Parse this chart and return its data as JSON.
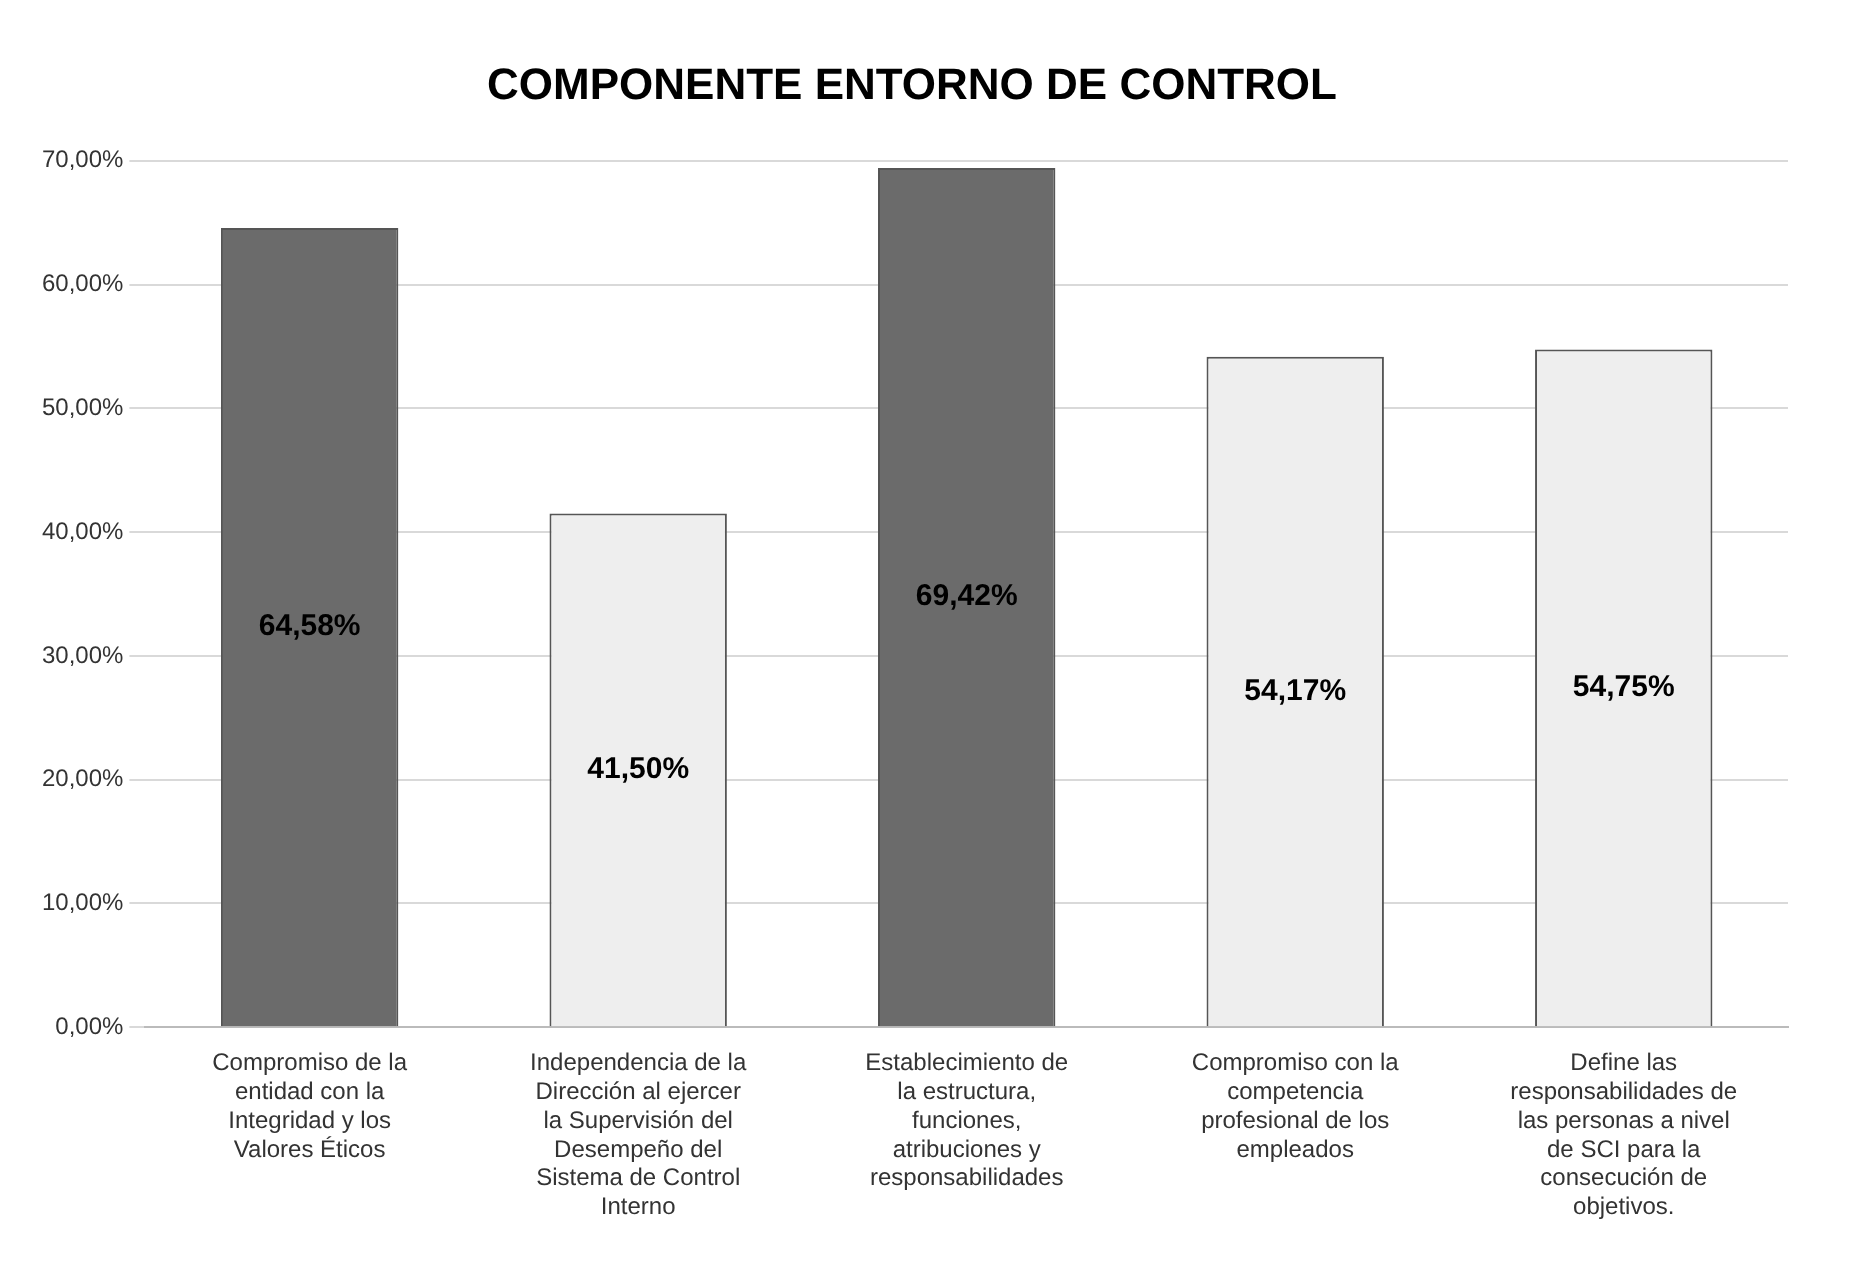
{
  "chart_data": {
    "type": "bar",
    "title": "COMPONENTE ENTORNO DE CONTROL",
    "categories": [
      "Compromiso de la entidad con la Integridad y los Valores Éticos",
      "Independencia de la Dirección al ejercer la Supervisión del Desempeño del Sistema de Control Interno",
      "Establecimiento de la estructura, funciones, atribuciones y responsabilidades",
      "Compromiso con la competencia profesional de los empleados",
      "Define las responsabilidades de las personas a nivel de SCI para la consecución de objetivos."
    ],
    "values": [
      64.58,
      41.5,
      69.42,
      54.17,
      54.75
    ],
    "colors": [
      "#6b6b6b",
      "#eeeeee",
      "#6b6b6b",
      "#eeeeee",
      "#eeeeee"
    ],
    "ylim": [
      0,
      70
    ],
    "yticks": [
      {
        "value": 0,
        "label": "0,00%"
      },
      {
        "value": 10,
        "label": "10,00%"
      },
      {
        "value": 20,
        "label": "20,00%"
      },
      {
        "value": 30,
        "label": "30,00%"
      },
      {
        "value": 40,
        "label": "40,00%"
      },
      {
        "value": 50,
        "label": "50,00%"
      },
      {
        "value": 60,
        "label": "60,00%"
      },
      {
        "value": 70,
        "label": "70,00%"
      }
    ],
    "value_labels": [
      "64,58%",
      "41,50%",
      "69,42%",
      "54,17%",
      "54,75%"
    ],
    "grid": "y",
    "legend": false
  }
}
